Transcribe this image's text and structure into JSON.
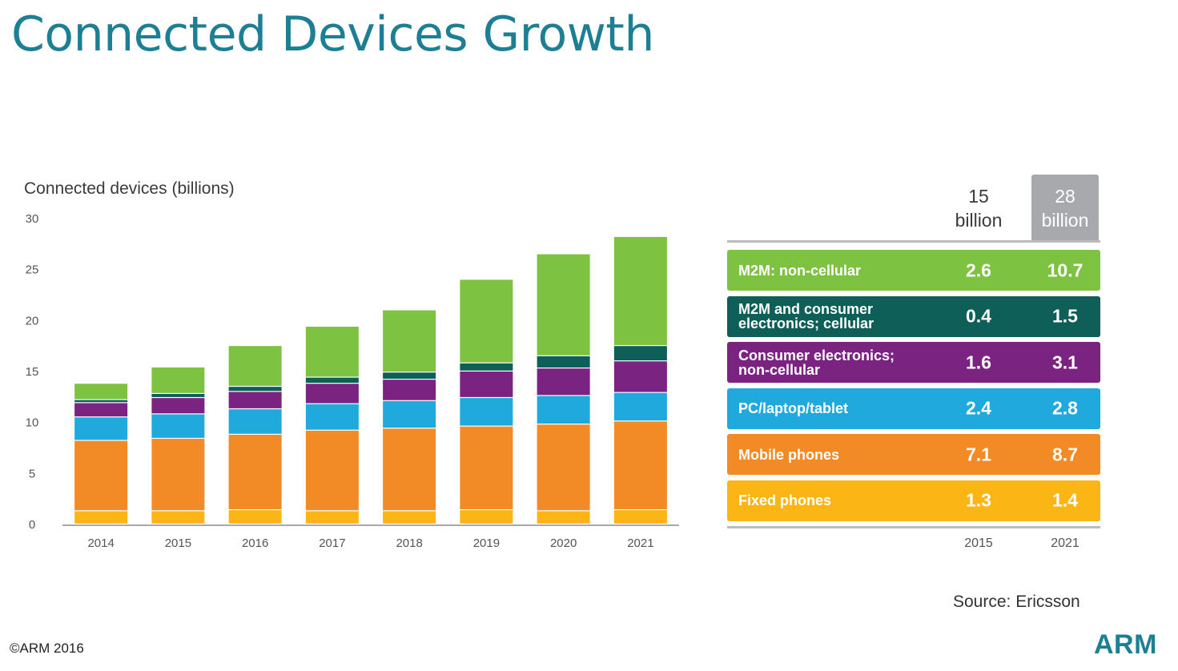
{
  "slide": {
    "title": "Connected Devices Growth",
    "source": "Source: Ericsson",
    "copyright": "©ARM 2016",
    "logo": "ARM"
  },
  "chart_data": [
    {
      "type": "bar",
      "stacked": true,
      "title": "Connected devices (billions)",
      "categories": [
        "2014",
        "2015",
        "2016",
        "2017",
        "2018",
        "2019",
        "2020",
        "2021"
      ],
      "ylim": [
        0,
        30
      ],
      "yticks": [
        "0",
        "5",
        "10",
        "15",
        "20",
        "25",
        "30"
      ],
      "series": [
        {
          "key": "fixed",
          "color": "#fbb616",
          "values": [
            1.3,
            1.3,
            1.4,
            1.3,
            1.3,
            1.4,
            1.3,
            1.4
          ]
        },
        {
          "key": "mobile",
          "color": "#f28b26",
          "values": [
            6.9,
            7.1,
            7.4,
            7.9,
            8.1,
            8.2,
            8.5,
            8.7
          ]
        },
        {
          "key": "pc",
          "color": "#1fa9dc",
          "values": [
            2.3,
            2.4,
            2.5,
            2.6,
            2.7,
            2.8,
            2.8,
            2.8
          ]
        },
        {
          "key": "ce",
          "color": "#7b2380",
          "values": [
            1.4,
            1.6,
            1.7,
            2.0,
            2.1,
            2.6,
            2.7,
            3.1
          ]
        },
        {
          "key": "m2m_cell",
          "color": "#0e5f58",
          "values": [
            0.3,
            0.4,
            0.5,
            0.6,
            0.7,
            0.8,
            1.2,
            1.5
          ]
        },
        {
          "key": "m2m_non",
          "color": "#7ec242",
          "values": [
            1.6,
            2.6,
            4.0,
            5.0,
            6.1,
            8.2,
            10.0,
            10.7
          ]
        }
      ]
    },
    {
      "type": "table",
      "columns": [
        "2015",
        "2021"
      ],
      "totals": {
        "c2015": {
          "line1": "15",
          "line2": "billion"
        },
        "c2021": {
          "line1": "28",
          "line2": "billion"
        }
      },
      "rows": [
        {
          "label": "M2M: non-cellular",
          "v2015": "2.6",
          "v2021": "10.7",
          "color": "#7ec242"
        },
        {
          "label": "M2M and consumer\nelectronics; cellular",
          "v2015": "0.4",
          "v2021": "1.5",
          "color": "#0e5f58"
        },
        {
          "label": "Consumer electronics;\nnon-cellular",
          "v2015": "1.6",
          "v2021": "3.1",
          "color": "#7b2380"
        },
        {
          "label": "PC/laptop/tablet",
          "v2015": "2.4",
          "v2021": "2.8",
          "color": "#1fa9dc"
        },
        {
          "label": "Mobile phones",
          "v2015": "7.1",
          "v2021": "8.7",
          "color": "#f28b26"
        },
        {
          "label": "Fixed phones",
          "v2015": "1.3",
          "v2021": "1.4",
          "color": "#fbb616"
        }
      ]
    }
  ]
}
